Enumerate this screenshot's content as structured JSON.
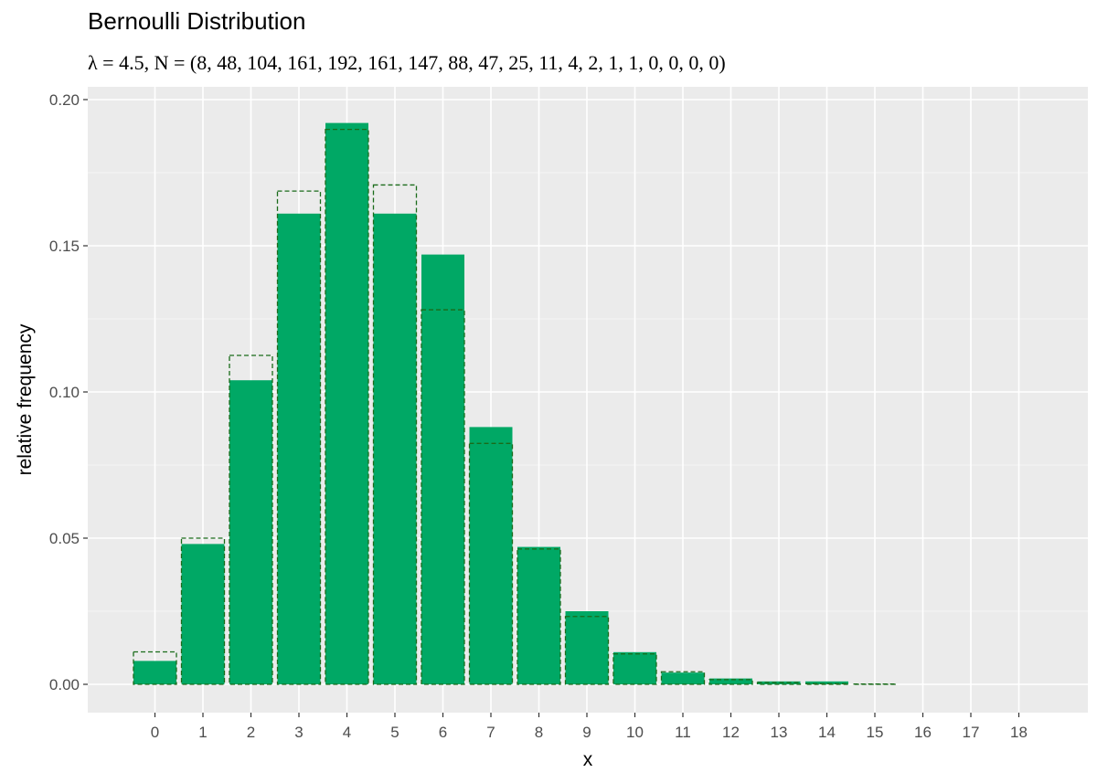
{
  "chart_data": {
    "type": "bar",
    "title": "Bernoulli Distribution",
    "subtitle": "λ = 4.5, N = (8, 48, 104, 161, 192, 161, 147, 88, 47, 25, 11, 4, 2, 1, 1, 0, 0, 0, 0)",
    "xlabel": "x",
    "ylabel": "relative frequency",
    "ylim": [
      0,
      0.2
    ],
    "y_ticks": [
      "0.00",
      "0.05",
      "0.10",
      "0.15",
      "0.20"
    ],
    "y_tick_values": [
      0,
      0.05,
      0.1,
      0.15,
      0.2
    ],
    "categories": [
      "0",
      "1",
      "2",
      "3",
      "4",
      "5",
      "6",
      "7",
      "8",
      "9",
      "10",
      "11",
      "12",
      "13",
      "14",
      "15",
      "16",
      "17",
      "18"
    ],
    "series": [
      {
        "values": [
          0.008,
          0.048,
          0.104,
          0.161,
          0.192,
          0.161,
          0.147,
          0.088,
          0.047,
          0.025,
          0.011,
          0.004,
          0.002,
          0.001,
          0.001,
          0,
          0,
          0,
          0
        ]
      },
      {
        "values": [
          0.0111,
          0.05,
          0.1125,
          0.1687,
          0.1898,
          0.1708,
          0.1281,
          0.0824,
          0.0463,
          0.0232,
          0.0104,
          0.0043,
          0.0016,
          0.0006,
          0.0002,
          0.0001,
          0,
          0,
          0
        ]
      }
    ],
    "grid": true,
    "legend": "none",
    "colors": {
      "bar_fill": "#00a865",
      "outline": "#1a6b1a",
      "panel_bg": "#ebebeb",
      "grid_major": "#ffffff",
      "grid_minor": "#f5f5f5"
    }
  }
}
